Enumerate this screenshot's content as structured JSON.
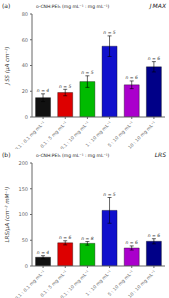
{
  "chart_data": [
    {
      "type": "bar",
      "title": "J MAX",
      "annotations": [
        "(a)",
        "o-CNH:PEI₅ (mg mL⁻¹ : mg mL⁻¹)"
      ],
      "y_label": "J SS (μA cm⁻²)",
      "categories": [
        "0.1 : 0.1 mg mL⁻¹",
        "0.1 : 5 mg mL⁻¹",
        "0.1 : 10 mg mL⁻¹",
        "1 : 10 mg mL⁻¹",
        "5 : 10 mg mL⁻¹",
        "10 : 10 mg mL⁻¹"
      ],
      "values": [
        15.0,
        19.0,
        27.5,
        55.0,
        25.0,
        39.0
      ],
      "errors": [
        3.0,
        2.5,
        4.5,
        8.0,
        3.0,
        4.0
      ],
      "n_labels": [
        "n = 4",
        "n = 5",
        "n = 5",
        "n = 5",
        "n = 6",
        "n = 6"
      ],
      "colors": [
        "#111111",
        "#dd0000",
        "#00bb00",
        "#1111cc",
        "#aa00cc",
        "#000088"
      ],
      "ylim": [
        0,
        80
      ],
      "yticks": [
        0,
        20,
        40,
        60,
        80
      ],
      "grid": false
    },
    {
      "type": "bar",
      "title": "LRS",
      "annotations": [
        "(b)",
        "o-CNH:PEI₅ (mg mL⁻¹ : mg mL⁻¹)"
      ],
      "y_label": "LRS/μA (cm⁻² mM⁻¹)",
      "categories": [
        "0.1 : 0.1 mg mL⁻¹",
        "0.1 : 5 mg mL⁻¹",
        "0.1 : 10 mg mL⁻¹",
        "1 : 10 mg mL⁻¹",
        "5 : 10 mg mL⁻¹",
        "10 : 10 mg mL⁻¹"
      ],
      "values": [
        17.0,
        45.0,
        44.0,
        108.0,
        35.0,
        48.0
      ],
      "errors": [
        3.0,
        4.0,
        3.5,
        25.0,
        4.0,
        5.0
      ],
      "n_labels": [
        "n = 4",
        "n = 6",
        "n = 8",
        "n = 5",
        "n = 6",
        "n = 6"
      ],
      "colors": [
        "#111111",
        "#dd0000",
        "#00bb00",
        "#1111cc",
        "#aa00cc",
        "#000088"
      ],
      "ylim": [
        0,
        200
      ],
      "yticks": [
        0,
        50,
        100,
        150,
        200
      ],
      "grid": false
    }
  ]
}
